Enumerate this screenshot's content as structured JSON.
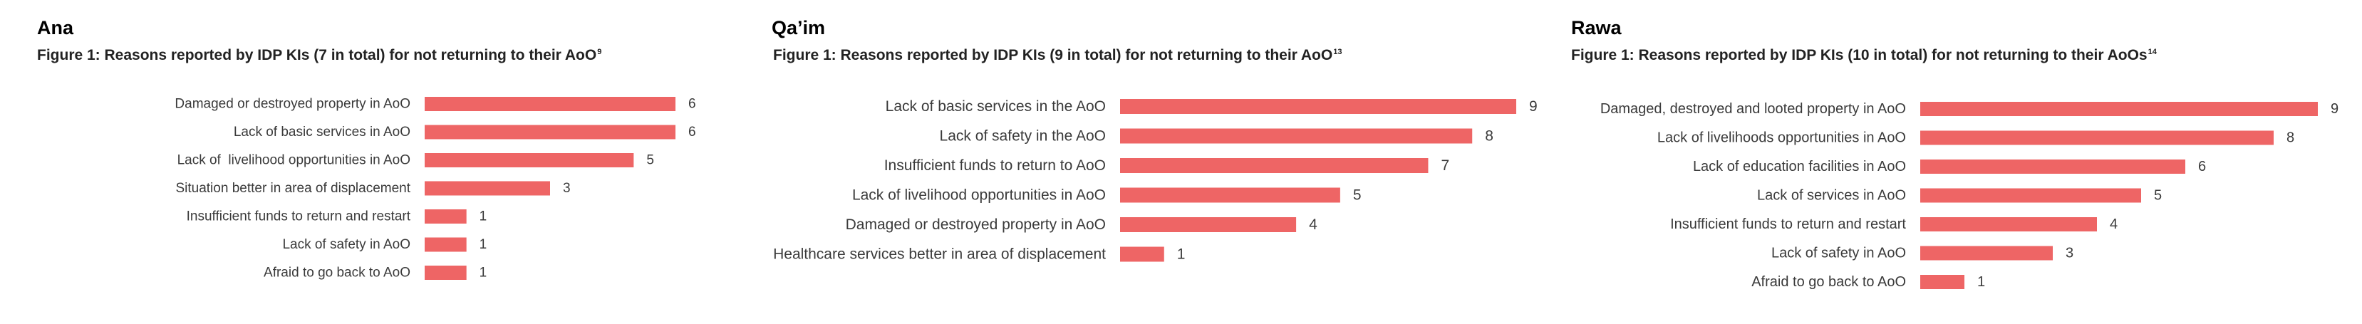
{
  "colors": {
    "bar": "#ee6565"
  },
  "chart_data": [
    {
      "type": "bar",
      "orientation": "horizontal",
      "location": "Ana",
      "title": "Figure 1: Reasons reported by IDP KIs (7 in total) for not returning to their AoO",
      "title_note": "9",
      "categories": [
        "Damaged or destroyed property in AoO",
        "Lack of basic services in AoO",
        "Lack of  livelihood opportunities in AoO",
        "Situation better in area of displacement",
        "Insufficient funds to return and restart",
        "Lack of safety in AoO",
        "Afraid to go back to AoO"
      ],
      "values": [
        6,
        6,
        5,
        3,
        1,
        1,
        1
      ],
      "xlim": [
        0,
        6
      ]
    },
    {
      "type": "bar",
      "orientation": "horizontal",
      "location": "Qa’im",
      "title": "Figure 1: Reasons reported by IDP KIs (9 in total) for not returning to their AoO",
      "title_note": "13",
      "categories": [
        "Lack of basic services in the AoO",
        "Lack of safety in the AoO",
        "Insufficient funds to return to AoO",
        "Lack of livelihood opportunities in AoO",
        "Damaged or destroyed property in AoO",
        "Healthcare services better in area of displacement"
      ],
      "values": [
        9,
        8,
        7,
        5,
        4,
        1
      ],
      "xlim": [
        0,
        9
      ]
    },
    {
      "type": "bar",
      "orientation": "horizontal",
      "location": "Rawa",
      "title": "Figure 1: Reasons reported by IDP KIs (10 in total) for not returning to their AoOs",
      "title_note": "14",
      "categories": [
        "Damaged, destroyed and looted property in AoO",
        "Lack of livelihoods opportunities in AoO",
        "Lack of education facilities in AoO",
        "Lack of services in AoO",
        "Insufficient funds to return and restart",
        "Lack of safety in AoO",
        "Afraid to go back to AoO"
      ],
      "values": [
        9,
        8,
        6,
        5,
        4,
        3,
        1
      ],
      "xlim": [
        0,
        9
      ]
    }
  ]
}
